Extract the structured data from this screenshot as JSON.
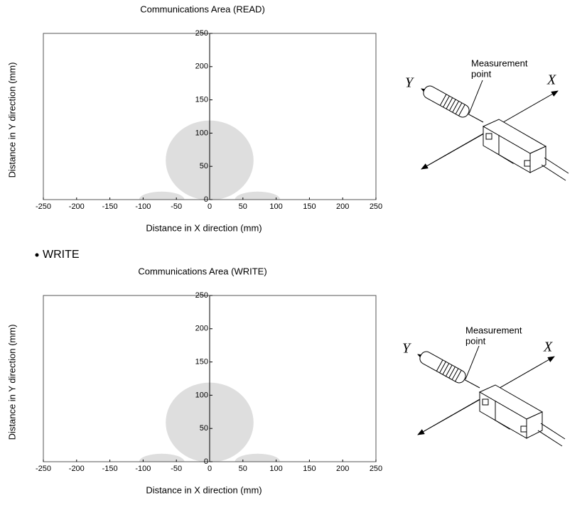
{
  "chart_data": [
    {
      "type": "area",
      "title": "Communications Area (READ)",
      "x_label": "Distance in X direction (mm)",
      "y_label": "Distance in Y direction (mm)",
      "xlim": [
        -250,
        250
      ],
      "ylim": [
        0,
        250
      ],
      "xticks": [
        -250,
        -200,
        -150,
        -100,
        -50,
        0,
        50,
        100,
        150,
        200,
        250
      ],
      "yticks": [
        0,
        50,
        100,
        150,
        200,
        250
      ],
      "color": "#dedede",
      "regions": [
        {
          "cx": 0,
          "cy": 59,
          "rx": 66,
          "ry": 60
        },
        {
          "cx": -72,
          "cy": 0,
          "rx": 34,
          "ry": 12
        },
        {
          "cx": 72,
          "cy": 0,
          "rx": 34,
          "ry": 12
        }
      ]
    },
    {
      "type": "area",
      "title": "Communications Area (WRITE)",
      "x_label": "Distance in X direction (mm)",
      "y_label": "Distance in Y direction (mm)",
      "xlim": [
        -250,
        250
      ],
      "ylim": [
        0,
        250
      ],
      "xticks": [
        -250,
        -200,
        -150,
        -100,
        -50,
        0,
        50,
        100,
        150,
        200,
        250
      ],
      "yticks": [
        0,
        50,
        100,
        150,
        200,
        250
      ],
      "color": "#dedede",
      "regions": [
        {
          "cx": 0,
          "cy": 59,
          "rx": 66,
          "ry": 60
        },
        {
          "cx": -72,
          "cy": 0,
          "rx": 34,
          "ry": 12
        },
        {
          "cx": 72,
          "cy": 0,
          "rx": 34,
          "ry": 12
        }
      ]
    }
  ],
  "section_heading": "WRITE",
  "diagrams": [
    {
      "label_lines": [
        "Measurement",
        "point"
      ],
      "x_axis": "X",
      "y_axis": "Y"
    },
    {
      "label_lines": [
        "Measurement",
        "point"
      ],
      "x_axis": "X",
      "y_axis": "Y"
    }
  ]
}
